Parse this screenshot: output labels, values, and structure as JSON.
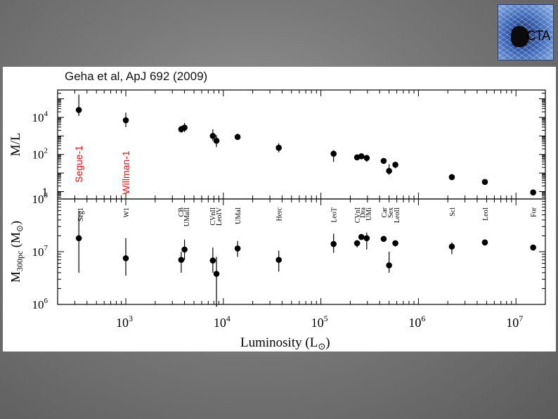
{
  "logo": {
    "text": "CTA"
  },
  "citation": "Geha et al, ApJ 692 (2009)",
  "chart_data": {
    "type": "scatter",
    "x": {
      "label_main": "Luminosity (L",
      "label_sym": "⊙",
      "label_close": ")",
      "scale": "log",
      "lim": [
        200,
        20000000
      ],
      "ticks": [
        {
          "base": "10",
          "exp": "3",
          "value": 1000
        },
        {
          "base": "10",
          "exp": "4",
          "value": 10000
        },
        {
          "base": "10",
          "exp": "5",
          "value": 100000
        },
        {
          "base": "10",
          "exp": "6",
          "value": 1000000
        },
        {
          "base": "10",
          "exp": "7",
          "value": 10000000
        }
      ]
    },
    "panels": [
      {
        "id": "ml",
        "ylabel": "M/L",
        "scale": "log",
        "ylim": [
          0.4,
          300000
        ],
        "yticks": [
          {
            "base": "1",
            "exp": "",
            "value": 1
          },
          {
            "base": "10",
            "exp": "2",
            "value": 100
          },
          {
            "base": "10",
            "exp": "4",
            "value": 10000
          }
        ],
        "annotations": [
          {
            "text": "Segue-1",
            "x": 330,
            "y": 3,
            "color": "#e01010"
          },
          {
            "text": "Willman-1",
            "x": 1000,
            "y": 0.7,
            "color": "#e01010"
          }
        ],
        "points": [
          {
            "x": 330,
            "y": 25000,
            "ylo": 12000,
            "yhi": 170000
          },
          {
            "x": 1000,
            "y": 7000,
            "ylo": 3000,
            "yhi": 18000
          },
          {
            "x": 3700,
            "y": 2300,
            "ylo": 1500,
            "yhi": 3500
          },
          {
            "x": 4000,
            "y": 2800,
            "ylo": 1600,
            "yhi": 5000
          },
          {
            "x": 7800,
            "y": 1000,
            "ylo": 550,
            "yhi": 2300
          },
          {
            "x": 8500,
            "y": 550,
            "ylo": 250,
            "yhi": 1100
          },
          {
            "x": 14000,
            "y": 880,
            "ylo": 600,
            "yhi": 1300
          },
          {
            "x": 37000,
            "y": 230,
            "ylo": 130,
            "yhi": 400
          },
          {
            "x": 135000,
            "y": 110,
            "ylo": 40,
            "yhi": 170
          },
          {
            "x": 235000,
            "y": 70,
            "ylo": 55,
            "yhi": 95
          },
          {
            "x": 260000,
            "y": 80,
            "ylo": 65,
            "yhi": 100
          },
          {
            "x": 295000,
            "y": 65,
            "ylo": 40,
            "yhi": 90
          },
          {
            "x": 440000,
            "y": 45,
            "ylo": 35,
            "yhi": 60
          },
          {
            "x": 500000,
            "y": 13,
            "ylo": 8,
            "yhi": 30
          },
          {
            "x": 580000,
            "y": 28,
            "ylo": 18,
            "yhi": 35
          },
          {
            "x": 2200000,
            "y": 6,
            "ylo": 5,
            "yhi": 8
          },
          {
            "x": 4800000,
            "y": 3.3,
            "ylo": 2.8,
            "yhi": 4
          },
          {
            "x": 15000000,
            "y": 0.9,
            "ylo": 0.8,
            "yhi": 1.05
          }
        ]
      },
      {
        "id": "mass",
        "ylabel_main": "M",
        "ylabel_sub": "300pc",
        "ylabel_unit": " (M",
        "ylabel_sym": "⊙",
        "ylabel_close": ")",
        "scale": "log",
        "ylim": [
          1000000,
          100000000
        ],
        "yticks": [
          {
            "base": "10",
            "exp": "6",
            "value": 1000000
          },
          {
            "base": "10",
            "exp": "7",
            "value": 10000000
          },
          {
            "base": "10",
            "exp": "8",
            "value": 100000000
          }
        ],
        "galaxy_labels": [
          {
            "text": "Seg1",
            "x": 340
          },
          {
            "text": "W1",
            "x": 1000
          },
          {
            "text": "CB",
            "x": 3650
          },
          {
            "text": "UMaII",
            "x": 4150
          },
          {
            "text": "CVnII",
            "x": 7700
          },
          {
            "text": "LeoIV",
            "x": 8900
          },
          {
            "text": "UMaI",
            "x": 14000
          },
          {
            "text": "Herc",
            "x": 37000
          },
          {
            "text": "LeoT",
            "x": 135000
          },
          {
            "text": "CVnI",
            "x": 235000
          },
          {
            "text": "Dra",
            "x": 265000
          },
          {
            "text": "UMi",
            "x": 305000
          },
          {
            "text": "Car",
            "x": 440000
          },
          {
            "text": "Sex",
            "x": 510000
          },
          {
            "text": "LeoII",
            "x": 595000
          },
          {
            "text": "Scl",
            "x": 2200000
          },
          {
            "text": "LeoI",
            "x": 4800000
          },
          {
            "text": "For",
            "x": 15000000
          }
        ],
        "points": [
          {
            "x": 330,
            "y": 18000000,
            "ylo": 4000000,
            "yhi": 60000000
          },
          {
            "x": 1000,
            "y": 7500000,
            "ylo": 3500000,
            "yhi": 18000000
          },
          {
            "x": 3700,
            "y": 7000000,
            "ylo": 4000000,
            "yhi": 10000000
          },
          {
            "x": 4000,
            "y": 11000000,
            "ylo": 7000000,
            "yhi": 17000000
          },
          {
            "x": 7800,
            "y": 6800000,
            "ylo": 4000000,
            "yhi": 12000000
          },
          {
            "x": 8500,
            "y": 3800000,
            "ylo": 900000,
            "yhi": 8000000
          },
          {
            "x": 14000,
            "y": 11500000,
            "ylo": 8000000,
            "yhi": 16000000
          },
          {
            "x": 37000,
            "y": 7000000,
            "ylo": 4200000,
            "yhi": 10500000
          },
          {
            "x": 135000,
            "y": 14000000,
            "ylo": 9500000,
            "yhi": 22000000
          },
          {
            "x": 235000,
            "y": 14500000,
            "ylo": 12000000,
            "yhi": 16500000
          },
          {
            "x": 260000,
            "y": 19000000,
            "ylo": 17000000,
            "yhi": 21000000
          },
          {
            "x": 295000,
            "y": 18000000,
            "ylo": 11000000,
            "yhi": 23000000
          },
          {
            "x": 440000,
            "y": 17500000,
            "ylo": 15500000,
            "yhi": 19500000
          },
          {
            "x": 500000,
            "y": 5500000,
            "ylo": 4000000,
            "yhi": 10000000
          },
          {
            "x": 580000,
            "y": 14500000,
            "ylo": 12500000,
            "yhi": 16500000
          },
          {
            "x": 2200000,
            "y": 12500000,
            "ylo": 9000000,
            "yhi": 15000000
          },
          {
            "x": 4800000,
            "y": 15000000,
            "ylo": 13000000,
            "yhi": 17000000
          },
          {
            "x": 15000000,
            "y": 12000000,
            "ylo": 10500000,
            "yhi": 13500000
          }
        ]
      }
    ]
  }
}
